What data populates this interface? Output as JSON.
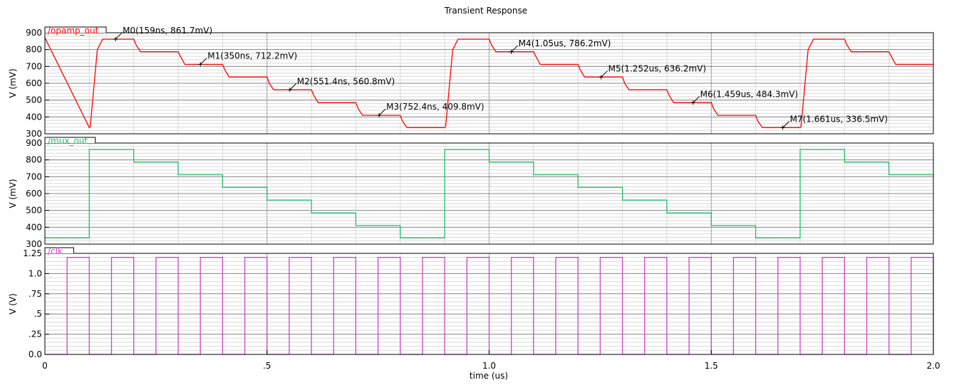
{
  "chart_data": {
    "type": "line",
    "title": "Transient Response",
    "xlabel": "time (us)",
    "xlim": [
      0,
      2.0
    ],
    "xticks": [
      "0",
      ".5",
      "1.0",
      "1.5",
      "2.0"
    ],
    "xtick_values": [
      0,
      0.5,
      1.0,
      1.5,
      2.0
    ],
    "grid": true,
    "panels": [
      {
        "name": "/opamp_out",
        "color": "#ff0000",
        "ylabel": "V (mV)",
        "ylim": [
          300,
          900
        ],
        "yticks": [
          "900",
          "800",
          "700",
          "600",
          "500",
          "400",
          "300"
        ],
        "ytick_values": [
          900,
          800,
          700,
          600,
          500,
          400,
          300
        ],
        "series": [
          {
            "name": "/opamp_out",
            "x": [
              0,
              0.1,
              0.102,
              0.118,
              0.13,
              0.2,
              0.205,
              0.215,
              0.3,
              0.305,
              0.315,
              0.4,
              0.405,
              0.415,
              0.5,
              0.505,
              0.515,
              0.6,
              0.605,
              0.615,
              0.7,
              0.705,
              0.715,
              0.8,
              0.805,
              0.815,
              0.9,
              0.902,
              0.918,
              0.93,
              1.0,
              1.005,
              1.015,
              1.1,
              1.105,
              1.115,
              1.2,
              1.205,
              1.215,
              1.3,
              1.305,
              1.315,
              1.4,
              1.405,
              1.415,
              1.5,
              1.505,
              1.515,
              1.6,
              1.605,
              1.615,
              1.7,
              1.702,
              1.718,
              1.73,
              1.8,
              1.805,
              1.815,
              1.9,
              1.905,
              1.915,
              2.0
            ],
            "y": [
              870,
              337,
              340,
              800,
              862,
              862,
              830,
              787,
              787,
              760,
              712,
              712,
              680,
              637,
              637,
              600,
              561,
              561,
              530,
              485,
              485,
              450,
              410,
              410,
              375,
              337,
              337,
              340,
              800,
              862,
              862,
              830,
              787,
              787,
              760,
              712,
              712,
              680,
              637,
              637,
              600,
              561,
              561,
              530,
              485,
              485,
              450,
              410,
              410,
              375,
              337,
              337,
              340,
              800,
              862,
              862,
              830,
              787,
              787,
              760,
              712,
              712
            ]
          }
        ],
        "markers": [
          {
            "label": "M0(159ns, 861.7mV)",
            "x": 0.159,
            "y": 861.7
          },
          {
            "label": "M1(350ns, 712.2mV)",
            "x": 0.35,
            "y": 712.2
          },
          {
            "label": "M2(551.4ns, 560.8mV)",
            "x": 0.5514,
            "y": 560.8
          },
          {
            "label": "M3(752.4ns, 409.8mV)",
            "x": 0.7524,
            "y": 409.8
          },
          {
            "label": "M4(1.05us, 786.2mV)",
            "x": 1.05,
            "y": 786.2
          },
          {
            "label": "M5(1.252us, 636.2mV)",
            "x": 1.252,
            "y": 636.2
          },
          {
            "label": "M6(1.459us, 484.3mV)",
            "x": 1.459,
            "y": 484.3
          },
          {
            "label": "M7(1.661us, 336.5mV)",
            "x": 1.661,
            "y": 336.5
          }
        ]
      },
      {
        "name": "/mux_out",
        "color": "#1fbf6a",
        "ylabel": "V (mV)",
        "ylim": [
          300,
          900
        ],
        "yticks": [
          "900",
          "800",
          "700",
          "600",
          "500",
          "400",
          "300"
        ],
        "ytick_values": [
          900,
          800,
          700,
          600,
          500,
          400,
          300
        ],
        "series": [
          {
            "name": "/mux_out",
            "x": [
              0,
              0.1,
              0.1,
              0.2,
              0.2,
              0.3,
              0.3,
              0.4,
              0.4,
              0.5,
              0.5,
              0.6,
              0.6,
              0.7,
              0.7,
              0.8,
              0.8,
              0.9,
              0.9,
              1.0,
              1.0,
              1.1,
              1.1,
              1.2,
              1.2,
              1.3,
              1.3,
              1.4,
              1.4,
              1.5,
              1.5,
              1.6,
              1.6,
              1.7,
              1.7,
              1.8,
              1.8,
              1.9,
              1.9,
              2.0
            ],
            "y": [
              337,
              337,
              862,
              862,
              787,
              787,
              712,
              712,
              637,
              637,
              561,
              561,
              485,
              485,
              410,
              410,
              337,
              337,
              862,
              862,
              787,
              787,
              712,
              712,
              637,
              637,
              561,
              561,
              485,
              485,
              410,
              410,
              337,
              337,
              862,
              862,
              787,
              787,
              712,
              712
            ]
          }
        ]
      },
      {
        "name": "/clk",
        "color": "#cc44cc",
        "ylabel": "V (V)",
        "ylim": [
          0,
          1.25
        ],
        "yticks": [
          "1.25",
          "1.0",
          ".75",
          ".5",
          ".25",
          "0.0"
        ],
        "ytick_values": [
          1.25,
          1.0,
          0.75,
          0.5,
          0.25,
          0.0
        ],
        "series": [
          {
            "name": "/clk",
            "period": 0.1,
            "duty": 0.5,
            "high": 1.2,
            "low": 0.0,
            "start": 0.0,
            "end": 2.0
          }
        ]
      }
    ]
  }
}
